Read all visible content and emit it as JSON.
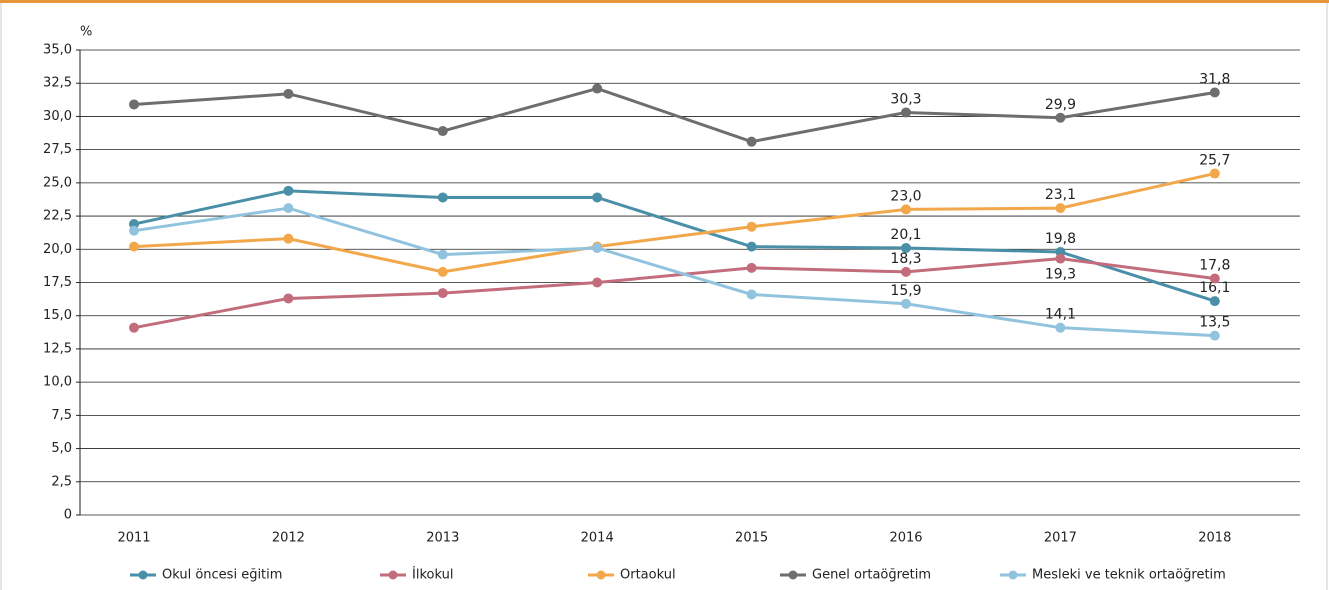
{
  "chart_data": {
    "type": "line",
    "y_label": "%",
    "categories": [
      "2011",
      "2012",
      "2013",
      "2014",
      "2015",
      "2016",
      "2017",
      "2018"
    ],
    "series": [
      {
        "name": "Okul öncesi eğitim",
        "color": "#4a8fa8",
        "values": [
          21.9,
          24.4,
          23.9,
          23.9,
          20.2,
          20.1,
          19.8,
          16.1
        ],
        "value_labels": [
          null,
          null,
          null,
          null,
          null,
          "20,1",
          "19,8",
          "16,1"
        ]
      },
      {
        "name": "İlkokul",
        "color": "#c26c7c",
        "values": [
          14.1,
          16.3,
          16.7,
          17.5,
          18.6,
          18.3,
          19.3,
          17.8
        ],
        "value_labels": [
          null,
          null,
          null,
          null,
          null,
          "18,3",
          "19,3",
          "17,8"
        ]
      },
      {
        "name": "Ortaokul",
        "color": "#f2a74b",
        "values": [
          20.2,
          20.8,
          18.3,
          20.2,
          21.7,
          23.0,
          23.1,
          25.7
        ],
        "value_labels": [
          null,
          null,
          null,
          null,
          null,
          "23,0",
          "23,1",
          "25,7"
        ]
      },
      {
        "name": "Genel ortaöğretim",
        "color": "#6e6e6e",
        "values": [
          30.9,
          31.7,
          28.9,
          32.1,
          28.1,
          30.3,
          29.9,
          31.8
        ],
        "value_labels": [
          null,
          null,
          null,
          null,
          null,
          "30,3",
          "29,9",
          "31,8"
        ]
      },
      {
        "name": "Mesleki ve teknik ortaöğretim",
        "color": "#92c3de",
        "values": [
          21.4,
          23.1,
          19.6,
          20.1,
          16.6,
          15.9,
          14.1,
          13.5
        ],
        "value_labels": [
          null,
          null,
          null,
          null,
          null,
          "15,9",
          "14,1",
          "13,5"
        ]
      }
    ],
    "ylim": [
      0,
      35
    ],
    "yticks": [
      0,
      {
        "value": 2.5,
        "label": "2,5"
      },
      {
        "value": 5,
        "label": "5,0"
      },
      {
        "value": 7.5,
        "label": "7,5"
      },
      {
        "value": 10,
        "label": "10,0"
      },
      {
        "value": 12.5,
        "label": "12,5"
      },
      {
        "value": 15,
        "label": "15,0"
      },
      {
        "value": 17.5,
        "label": "17,5"
      },
      {
        "value": 20,
        "label": "20,0"
      },
      {
        "value": 22.5,
        "label": "22,5"
      },
      {
        "value": 25,
        "label": "25,0"
      },
      {
        "value": 27.5,
        "label": "27,5"
      },
      {
        "value": 30,
        "label": "30,0"
      },
      {
        "value": 32.5,
        "label": "32,5"
      },
      {
        "value": 35,
        "label": "35,0"
      }
    ],
    "grid": true,
    "legend": "bottom"
  }
}
